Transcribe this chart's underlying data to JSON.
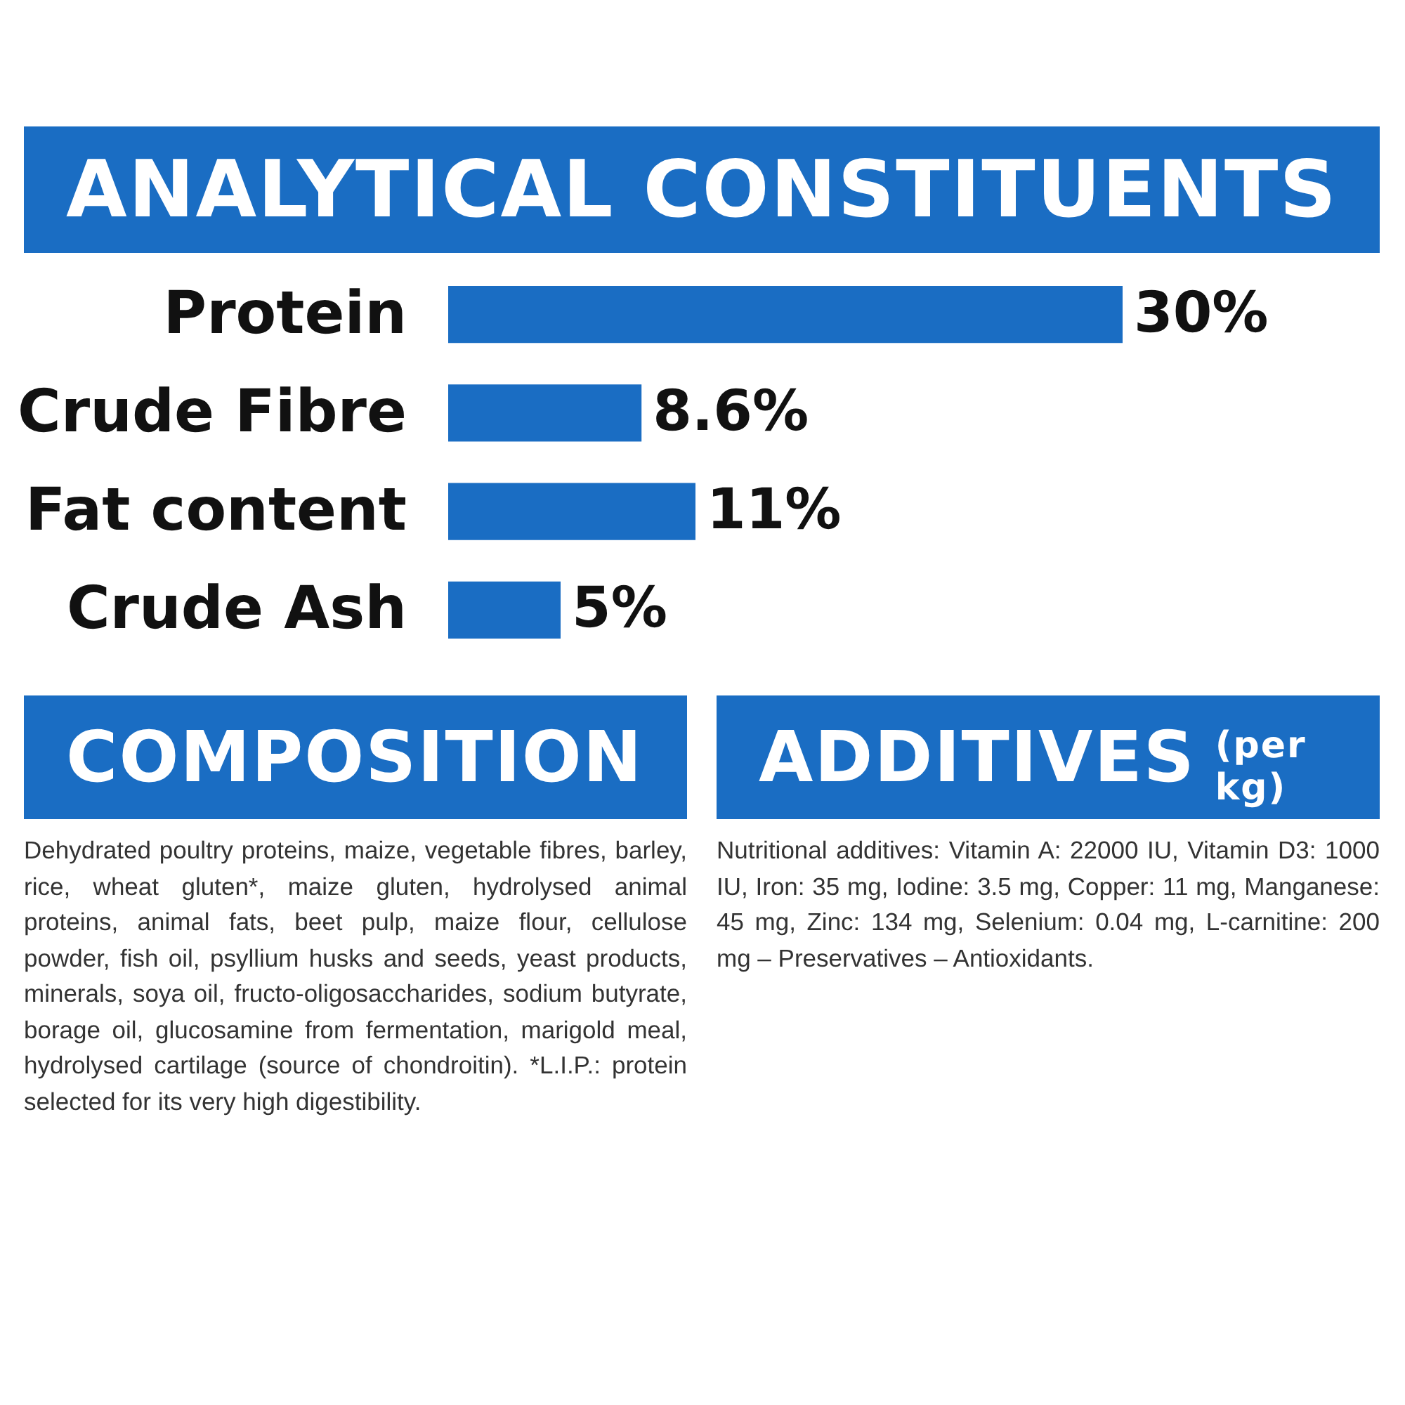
{
  "chart_data": [
    {
      "type": "bar",
      "title": "ANALYTICAL CONSTITUENTS",
      "orientation": "horizontal",
      "categories": [
        "Protein",
        "Crude Fibre",
        "Fat content",
        "Crude Ash"
      ],
      "values": [
        30,
        8.6,
        11,
        5
      ],
      "value_labels": [
        "30%",
        "8.6%",
        "11%",
        "5%"
      ],
      "color": "#1a6dc3",
      "tick_labels": "y"
    },
    {
      "type": "other",
      "title": "COMPOSITION",
      "annotations": [
        "Dehydrated poultry proteins, maize, vegetable fibres, barley, rice, wheat gluten*, maize gluten, hydrolysed animal proteins, animal fats, beet pulp, maize flour, cellulose powder, fish oil, psyllium husks and seeds, yeast products, minerals, soya oil, fructo-oligosaccharides, sodium butyrate, borage oil, glucosamine from fermentation, marigold meal, hydrolysed cartilage (source of chondroitin). *L.I.P.: protein selected for its very high digestibility."
      ]
    },
    {
      "type": "other",
      "title": "ADDITIVES",
      "subtitle": "(per kg)",
      "annotations": [
        "Nutritional additives: Vitamin A: 22000 IU, Vitamin D3: 1000 IU, Iron: 35 mg, Iodine: 3.5 mg, Copper: 11 mg, Manganese: 45 mg, Zinc: 134 mg, Selenium: 0.04 mg, L-carnitine: 200 mg – Preservatives – Antioxidants."
      ]
    }
  ]
}
